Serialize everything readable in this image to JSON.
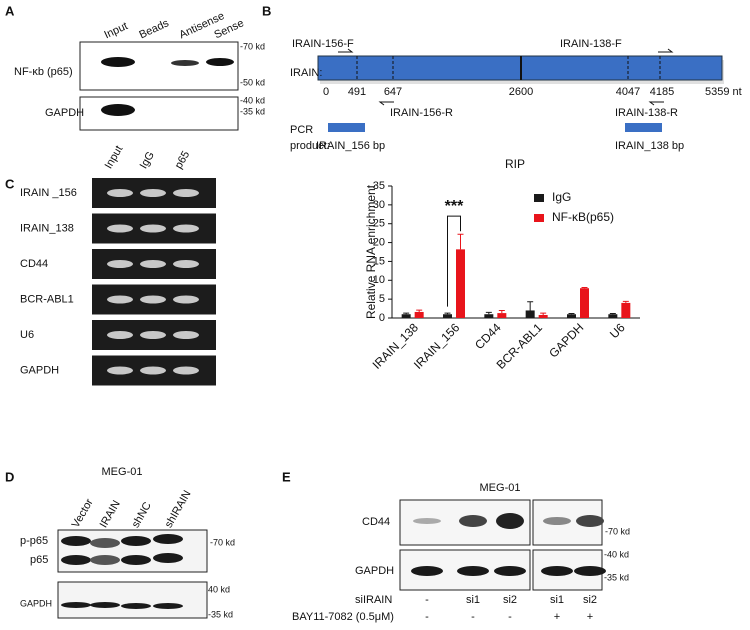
{
  "panel_labels": [
    "A",
    "B",
    "C",
    "D",
    "E"
  ],
  "panel_a": {
    "lanes": [
      "Input",
      "Beads",
      "Antisense",
      "Sense"
    ],
    "rows": [
      "NF-κb (p65)",
      "GAPDH"
    ],
    "markers": [
      "-70 kd",
      "-50 kd",
      "-40 kd",
      "-35 kd"
    ]
  },
  "panel_b": {
    "primers": [
      "IRAIN-156-F",
      "IRAIN-138-F",
      "IRAIN-156-R",
      "IRAIN-138-R"
    ],
    "gene": "IRAIN:",
    "positions": [
      "0",
      "491",
      "647",
      "2600",
      "4047",
      "4185",
      "5359 nt"
    ],
    "pcr": [
      "PCR",
      "product:"
    ],
    "products": [
      "IRAIN_156 bp",
      "IRAIN_138 bp"
    ]
  },
  "panel_c": {
    "lanes": [
      "Input",
      "IgG",
      "p65"
    ],
    "rows": [
      "IRAIN _156",
      "IRAIN_138",
      "CD44",
      "BCR-ABL1",
      "U6",
      "GAPDH"
    ]
  },
  "chart_data": {
    "type": "bar",
    "title": "RIP",
    "y_label": "Relative RNA enrichment",
    "categories": [
      "IRAIN_138",
      "IRAIN_156",
      "CD44",
      "BCR-ABL1",
      "GAPDH",
      "U6"
    ],
    "series": [
      {
        "name": "IgG",
        "color": "#1a1a1a",
        "values": [
          1.0,
          1.0,
          1.0,
          2.0,
          1.0,
          1.0
        ],
        "errors": [
          0.3,
          0.3,
          0.5,
          2.3,
          0.2,
          0.2
        ]
      },
      {
        "name": "NF-κB(p65)",
        "color": "#e8141b",
        "values": [
          1.6,
          18.2,
          1.3,
          0.8,
          7.9,
          4.0
        ],
        "errors": [
          0.5,
          4.0,
          0.7,
          0.5,
          0.2,
          0.4
        ]
      }
    ],
    "ylim": [
      0,
      35
    ],
    "yticks": [
      0,
      5,
      10,
      15,
      20,
      25,
      30,
      35
    ],
    "significance": "***"
  },
  "panel_d": {
    "title": "MEG-01",
    "lanes": [
      "Vector",
      "IRAIN",
      "shNC",
      "shIRAIN"
    ],
    "rows": [
      "p-p65",
      "p65",
      "GAPDH"
    ],
    "markers": [
      "-70 kd",
      "40 kd",
      "-35 kd"
    ]
  },
  "panel_e": {
    "title": "MEG-01",
    "rows": [
      "CD44",
      "GAPDH"
    ],
    "markers": [
      "-70 kd",
      "-40 kd",
      "-35 kd"
    ],
    "conditions": [
      {
        "label": "siIRAIN",
        "values": [
          "-",
          "si1",
          "si2",
          "si1",
          "si2"
        ]
      },
      {
        "label": "BAY11-7082 (0.5μM)",
        "values": [
          "-",
          "-",
          "-",
          "+",
          "+"
        ]
      }
    ]
  }
}
